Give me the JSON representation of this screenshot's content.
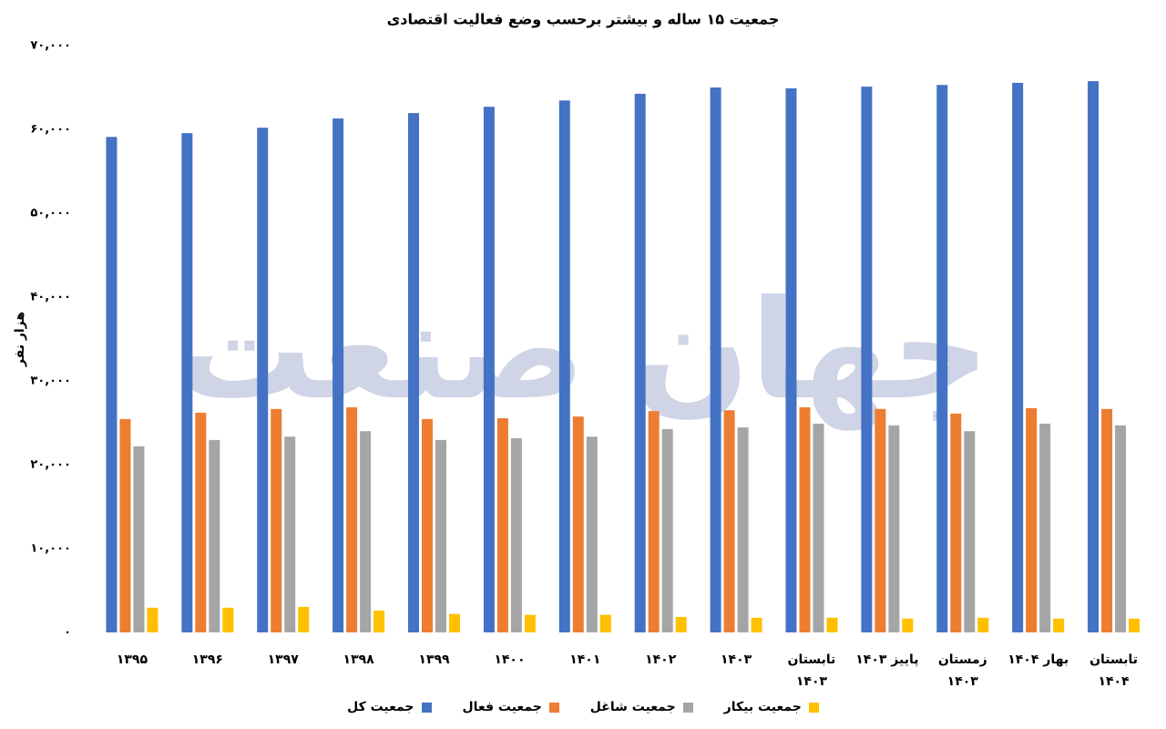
{
  "chart_data": {
    "type": "bar",
    "title": "جمعیت ۱۵ ساله و بیشتر برحسب وضع فعالیت اقتصادی",
    "y_label": "هزار نفر",
    "watermark": "جهان صنعت",
    "categories": [
      "۱۳۹۵",
      "۱۳۹۶",
      "۱۳۹۷",
      "۱۳۹۸",
      "۱۳۹۹",
      "۱۴۰۰",
      "۱۴۰۱",
      "۱۴۰۲",
      "۱۴۰۳",
      "تابستان ۱۴۰۳",
      "پاییز ۱۴۰۳",
      "زمستان ۱۴۰۳",
      "بهار ۱۴۰۴",
      "تابستان ۱۴۰۴"
    ],
    "series": [
      {
        "name": "جمعیت کل",
        "color": "#4472c4",
        "values": [
          59100,
          59550,
          60200,
          61300,
          61950,
          62700,
          63450,
          64250,
          65000,
          64900,
          65100,
          65300,
          65550,
          65750
        ]
      },
      {
        "name": "جمعیت فعال",
        "color": "#ed7d31",
        "values": [
          25450,
          26200,
          26650,
          26850,
          25450,
          25550,
          25750,
          26400,
          26500,
          26850,
          26650,
          26100,
          26750,
          26650
        ]
      },
      {
        "name": "جمعیت شاغل",
        "color": "#a5a5a5",
        "values": [
          22200,
          22950,
          23350,
          24000,
          22950,
          23150,
          23350,
          24250,
          24450,
          24900,
          24700,
          24000,
          24900,
          24700
        ]
      },
      {
        "name": "جمعیت بیکار",
        "color": "#ffc000",
        "values": [
          2950,
          2950,
          3050,
          2600,
          2200,
          2100,
          2100,
          1850,
          1750,
          1750,
          1650,
          1750,
          1650,
          1650
        ]
      }
    ],
    "ylim": [
      0,
      70000
    ],
    "yticks": [
      {
        "value": 0,
        "label": "۰"
      },
      {
        "value": 10000,
        "label": "۱۰,۰۰۰"
      },
      {
        "value": 20000,
        "label": "۲۰,۰۰۰"
      },
      {
        "value": 30000,
        "label": "۳۰,۰۰۰"
      },
      {
        "value": 40000,
        "label": "۴۰,۰۰۰"
      },
      {
        "value": 50000,
        "label": "۵۰,۰۰۰"
      },
      {
        "value": 60000,
        "label": "۶۰,۰۰۰"
      },
      {
        "value": 70000,
        "label": "۷۰,۰۰۰"
      }
    ],
    "grid": false,
    "legend": "bottom"
  }
}
